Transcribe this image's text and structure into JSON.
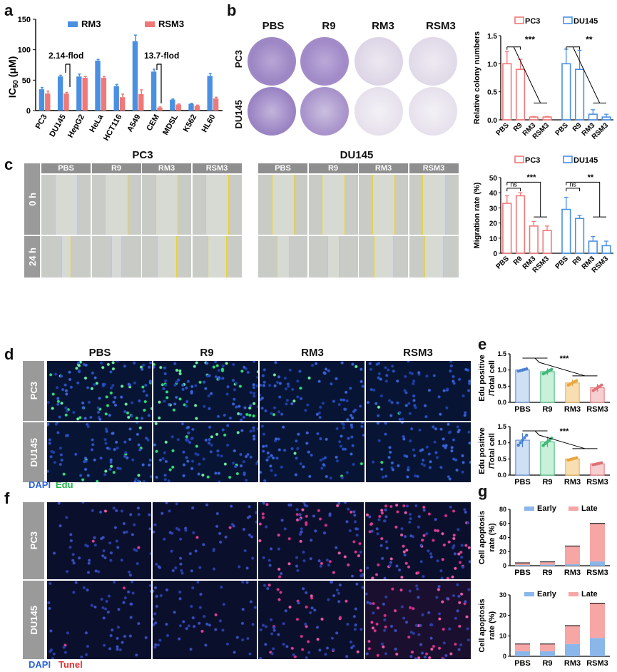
{
  "panels": {
    "a": "a",
    "b": "b",
    "c": "c",
    "d": "d",
    "e": "e",
    "f": "f",
    "g": "g"
  },
  "panel_a": {
    "legend_rm3": "RM3",
    "legend_rsm3": "RSM3",
    "ann1": "2.14-flod",
    "ann2": "13.7-flod",
    "colors": {
      "rm3": "#4a90e2",
      "rsm3": "#f07878"
    }
  },
  "panel_b": {
    "col_labels": [
      "PBS",
      "R9",
      "RM3",
      "RSM3"
    ],
    "row_labels": [
      "PC3",
      "DU145"
    ]
  },
  "panel_c": {
    "group_titles": [
      "PC3",
      "DU145"
    ],
    "col_labels": [
      "PBS",
      "R9",
      "RM3",
      "RSM3"
    ],
    "time_labels": [
      "0 h",
      "24 h"
    ]
  },
  "panel_d": {
    "col_labels": [
      "PBS",
      "R9",
      "RM3",
      "RSM3"
    ],
    "row_labels": [
      "PC3",
      "DU145"
    ],
    "stain1": "DAPI",
    "stain2": "Edu"
  },
  "panel_f": {
    "row_labels": [
      "PC3",
      "DU145"
    ],
    "stain1": "DAPI",
    "stain2": "Tunel"
  },
  "chart_data": [
    {
      "id": "a",
      "type": "bar",
      "ylabel_main": "IC",
      "ylabel_sub": "50",
      "ylabel_unit": " (μM)",
      "categories": [
        "PC3",
        "DU145",
        "HepG2",
        "HeLa",
        "HCT116",
        "A549",
        "CEM",
        "MDSL",
        "K562",
        "HL60"
      ],
      "series": [
        {
          "name": "RM3",
          "values": [
            35,
            56,
            56,
            82,
            40,
            114,
            64,
            18,
            11,
            57
          ],
          "err": [
            3,
            2,
            4,
            2,
            3,
            10,
            4,
            1,
            1,
            4
          ]
        },
        {
          "name": "RSM3",
          "values": [
            28,
            28,
            54,
            54,
            22,
            27,
            5,
            10,
            8,
            20
          ],
          "err": [
            4,
            2,
            2,
            2,
            5,
            7,
            1,
            1,
            1,
            2
          ]
        }
      ],
      "ylim": [
        0,
        150
      ],
      "yticks": [
        0,
        50,
        100,
        150
      ]
    },
    {
      "id": "b",
      "type": "bar",
      "ylabel": "Relative colony numbers",
      "categories": [
        "PBS",
        "R9",
        "RM3",
        "RSM3",
        "PBS",
        "R9",
        "RM3",
        "RSM3"
      ],
      "legend": [
        "PC3",
        "DU145"
      ],
      "values": [
        1.0,
        0.9,
        0.05,
        0.05,
        1.0,
        0.9,
        0.1,
        0.05
      ],
      "err": [
        0.22,
        0.18,
        0.01,
        0.01,
        0.26,
        0.34,
        0.08,
        0.05
      ],
      "sig": [
        "***",
        "**"
      ],
      "ylim": [
        0,
        1.5
      ],
      "yticks": [
        "0.0",
        "0.5",
        "1.0",
        "1.5"
      ]
    },
    {
      "id": "c",
      "type": "bar",
      "ylabel": "Migration rate (%)",
      "categories": [
        "PBS",
        "R9",
        "RM3",
        "RSM3",
        "PBS",
        "R9",
        "RM3",
        "RSM3"
      ],
      "legend": [
        "PC3",
        "DU145"
      ],
      "values": [
        33,
        38,
        18,
        15,
        29,
        23,
        8,
        5
      ],
      "err": [
        5,
        2,
        3,
        3,
        8,
        2,
        3,
        3
      ],
      "sig": [
        "ns",
        "***",
        "ns",
        "**"
      ],
      "ylim": [
        0,
        50
      ],
      "yticks": [
        0,
        10,
        20,
        30,
        40,
        50
      ]
    },
    {
      "id": "e1",
      "type": "bar",
      "ylabel1": "Edu positive",
      "ylabel2": "/Total cell",
      "categories": [
        "PBS",
        "R9",
        "RM3",
        "RSM3"
      ],
      "values": [
        1.0,
        0.95,
        0.6,
        0.45
      ],
      "err": [
        0.05,
        0.1,
        0.1,
        0.12
      ],
      "sig": "***",
      "ylim": [
        0,
        1.5
      ],
      "yticks": [
        "0.0",
        "0.5",
        "1.0",
        "1.5"
      ]
    },
    {
      "id": "e2",
      "type": "bar",
      "ylabel1": "Edu positive",
      "ylabel2": "/Total cell",
      "categories": [
        "PBS",
        "R9",
        "RM3",
        "RSM3"
      ],
      "values": [
        1.08,
        1.03,
        0.5,
        0.35
      ],
      "err": [
        0.22,
        0.16,
        0.05,
        0.04
      ],
      "sig": "***",
      "ylim": [
        0,
        1.5
      ],
      "yticks": [
        "0.0",
        "0.5",
        "1.0",
        "1.5"
      ]
    },
    {
      "id": "g1",
      "type": "bar",
      "ylabel1": "Cell apoptosis",
      "ylabel2": "rate (%)",
      "categories": [
        "PBS",
        "R9",
        "RM3",
        "RSM3"
      ],
      "series": [
        {
          "name": "Early",
          "values": [
            1,
            1.5,
            2,
            6
          ]
        },
        {
          "name": "Late",
          "values": [
            3,
            4,
            26,
            54
          ]
        }
      ],
      "ylim": [
        0,
        80
      ],
      "yticks": [
        0,
        20,
        40,
        60,
        80
      ]
    },
    {
      "id": "g2",
      "type": "bar",
      "ylabel1": "Cell apoptosis",
      "ylabel2": "rate (%)",
      "categories": [
        "PBS",
        "R9",
        "RM3",
        "RSM3"
      ],
      "series": [
        {
          "name": "Early",
          "values": [
            2.5,
            2.5,
            6,
            9
          ]
        },
        {
          "name": "Late",
          "values": [
            3.5,
            3.5,
            9,
            17
          ]
        }
      ],
      "ylim": [
        0,
        30
      ],
      "yticks": [
        0,
        10,
        20,
        30
      ]
    }
  ]
}
